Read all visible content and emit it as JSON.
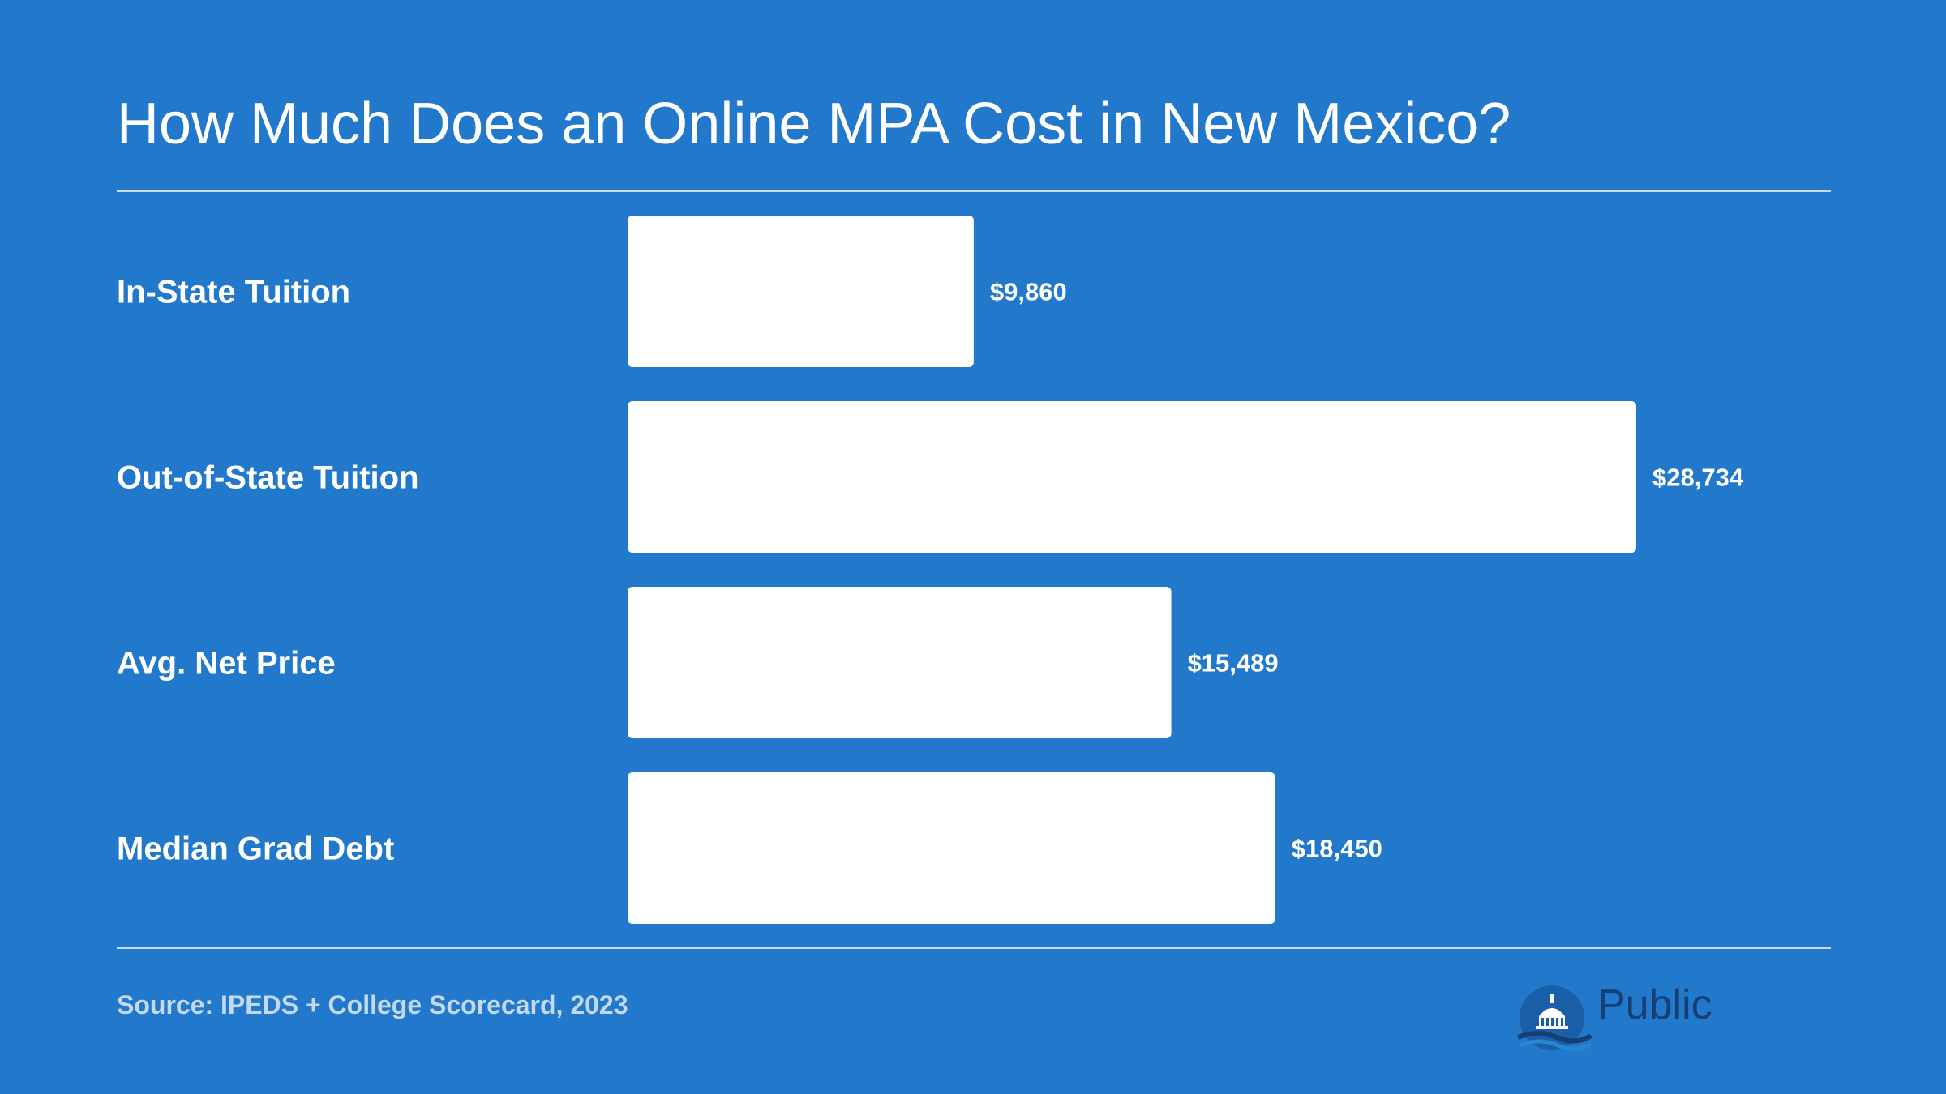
{
  "chart_data": {
    "type": "bar",
    "orientation": "horizontal",
    "title": "How Much Does an Online MPA Cost in New Mexico?",
    "categories": [
      "In-State Tuition",
      "Out-of-State Tuition",
      "Avg. Net Price",
      "Median Grad Debt"
    ],
    "values": [
      9860,
      28734,
      15489,
      18450
    ],
    "value_labels": [
      "$9,860",
      "$28,734",
      "$15,489",
      "$18,450"
    ],
    "xlim": [
      0,
      28734
    ],
    "grid": false,
    "legend": "none",
    "colors": {
      "background": "#2279cc",
      "bar": "#ffffff",
      "text": "#ffffff"
    }
  },
  "footer": {
    "source": "Source: IPEDS + College Scorecard, 2023"
  },
  "logo": {
    "word": "Public",
    "icon": "capitol-dome-icon"
  }
}
